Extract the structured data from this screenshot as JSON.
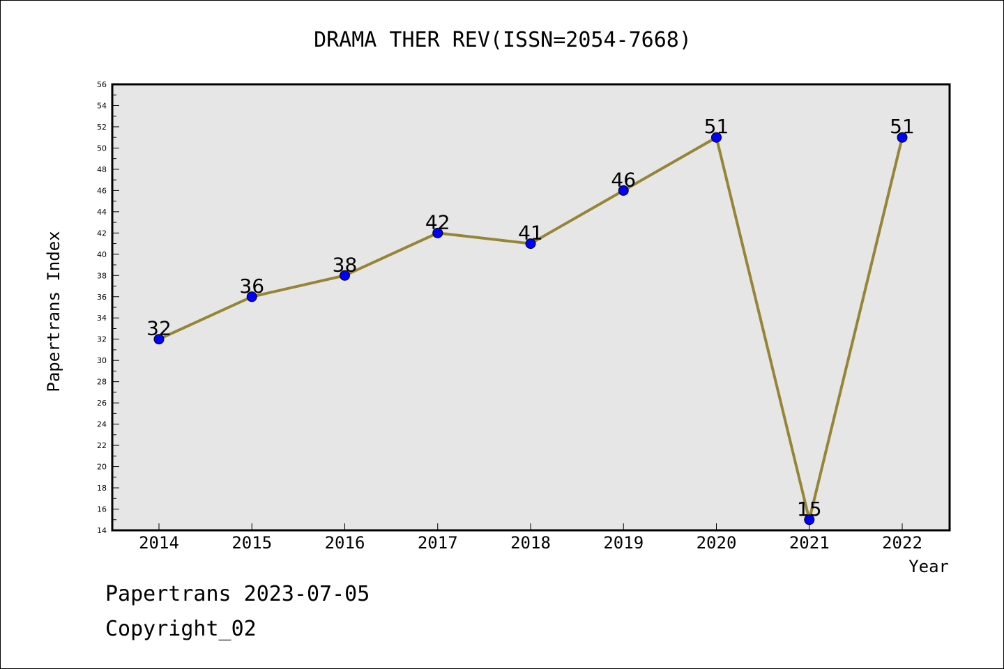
{
  "chart_data": {
    "type": "line",
    "title": "DRAMA THER REV(ISSN=2054-7668)",
    "xlabel": "Year",
    "ylabel": "Papertrans Index",
    "categories": [
      "2014",
      "2015",
      "2016",
      "2017",
      "2018",
      "2019",
      "2020",
      "2021",
      "2022"
    ],
    "values": [
      32,
      36,
      38,
      42,
      41,
      46,
      51,
      15,
      51
    ],
    "ylim": [
      14,
      56
    ],
    "yticks": [
      14,
      16,
      18,
      20,
      22,
      24,
      26,
      28,
      30,
      32,
      34,
      36,
      38,
      40,
      42,
      44,
      46,
      48,
      50,
      52,
      54,
      56
    ],
    "line_color": "#968535",
    "marker_color": "#0000ff",
    "plot_background": "#e6e6e6",
    "grid": false,
    "legend": "none"
  },
  "footer": {
    "date_line": "Papertrans 2023-07-05",
    "copyright_line": "Copyright_02"
  }
}
